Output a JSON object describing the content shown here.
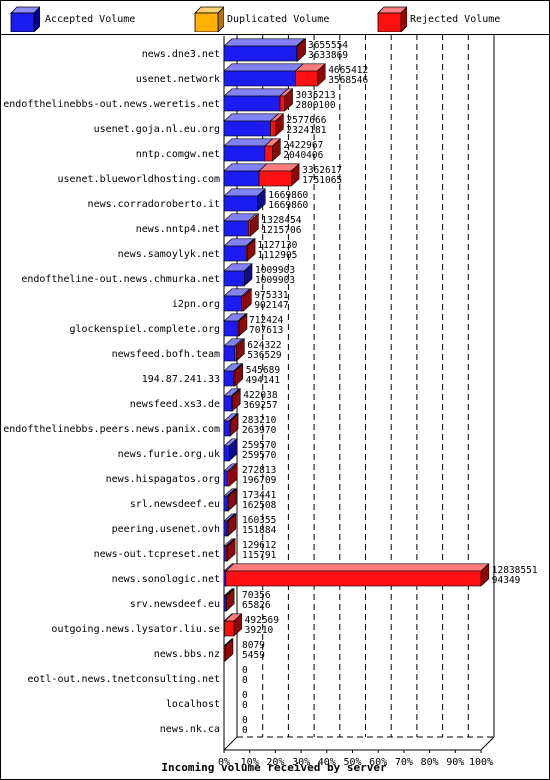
{
  "legend": [
    {
      "label": "Accepted Volume",
      "color": "#1c1cf0",
      "icon": "blue-cube-icon"
    },
    {
      "label": "Duplicated Volume",
      "color": "#ffb000",
      "icon": "orange-cube-icon"
    },
    {
      "label": "Rejected Volume",
      "color": "#ff1010",
      "icon": "red-cube-icon"
    }
  ],
  "chart_data": {
    "type": "bar",
    "orientation": "horizontal",
    "xlabel": "Incoming volume received by server",
    "xticks": [
      "0%",
      "10%",
      "20%",
      "30%",
      "40%",
      "50%",
      "60%",
      "70%",
      "80%",
      "90%",
      "100%"
    ],
    "xlim": [
      0,
      12838551
    ],
    "categories": [
      {
        "name": "news.dne3.net",
        "total": "3655554",
        "accepted": "3633869",
        "t": 3655554,
        "a": 3633869,
        "kind": "accepted"
      },
      {
        "name": "usenet.network",
        "total": "4665412",
        "accepted": "3568546",
        "t": 4665412,
        "a": 3568546,
        "kind": "accepted"
      },
      {
        "name": "endofthelinebbs-out.news.weretis.net",
        "total": "3035213",
        "accepted": "2800100",
        "t": 3035213,
        "a": 2800100,
        "kind": "accepted"
      },
      {
        "name": "usenet.goja.nl.eu.org",
        "total": "2577666",
        "accepted": "2324181",
        "t": 2577666,
        "a": 2324181,
        "kind": "accepted"
      },
      {
        "name": "nntp.comgw.net",
        "total": "2422967",
        "accepted": "2040406",
        "t": 2422967,
        "a": 2040406,
        "kind": "accepted"
      },
      {
        "name": "usenet.blueworldhosting.com",
        "total": "3362617",
        "accepted": "1751065",
        "t": 3362617,
        "a": 1751065,
        "kind": "accepted"
      },
      {
        "name": "news.corradoroberto.it",
        "total": "1669860",
        "accepted": "1669860",
        "t": 1669860,
        "a": 1669860,
        "kind": "accepted"
      },
      {
        "name": "news.nntp4.net",
        "total": "1328454",
        "accepted": "1215706",
        "t": 1328454,
        "a": 1215706,
        "kind": "accepted"
      },
      {
        "name": "news.samoylyk.net",
        "total": "1127130",
        "accepted": "1112905",
        "t": 1127130,
        "a": 1112905,
        "kind": "accepted"
      },
      {
        "name": "endoftheline-out.news.chmurka.net",
        "total": "1009903",
        "accepted": "1009903",
        "t": 1009903,
        "a": 1009903,
        "kind": "accepted"
      },
      {
        "name": "i2pn.org",
        "total": "975331",
        "accepted": "902147",
        "t": 975331,
        "a": 902147,
        "kind": "accepted"
      },
      {
        "name": "glockenspiel.complete.org",
        "total": "712424",
        "accepted": "707613",
        "t": 712424,
        "a": 707613,
        "kind": "accepted"
      },
      {
        "name": "newsfeed.bofh.team",
        "total": "624322",
        "accepted": "536529",
        "t": 624322,
        "a": 536529,
        "kind": "accepted"
      },
      {
        "name": "194.87.241.33",
        "total": "545689",
        "accepted": "494141",
        "t": 545689,
        "a": 494141,
        "kind": "accepted"
      },
      {
        "name": "newsfeed.xs3.de",
        "total": "422038",
        "accepted": "369257",
        "t": 422038,
        "a": 369257,
        "kind": "accepted"
      },
      {
        "name": "endofthelinebbs.peers.news.panix.com",
        "total": "283210",
        "accepted": "263970",
        "t": 283210,
        "a": 263970,
        "kind": "accepted"
      },
      {
        "name": "news.furie.org.uk",
        "total": "259570",
        "accepted": "259570",
        "t": 259570,
        "a": 259570,
        "kind": "accepted"
      },
      {
        "name": "news.hispagatos.org",
        "total": "272813",
        "accepted": "196709",
        "t": 272813,
        "a": 196709,
        "kind": "accepted"
      },
      {
        "name": "srl.newsdeef.eu",
        "total": "173441",
        "accepted": "162508",
        "t": 173441,
        "a": 162508,
        "kind": "accepted"
      },
      {
        "name": "peering.usenet.ovh",
        "total": "160355",
        "accepted": "151884",
        "t": 160355,
        "a": 151884,
        "kind": "accepted"
      },
      {
        "name": "news-out.tcpreset.net",
        "total": "129612",
        "accepted": "115791",
        "t": 129612,
        "a": 115791,
        "kind": "accepted"
      },
      {
        "name": "news.sonologic.net",
        "total": "12838551",
        "accepted": "94349",
        "t": 12838551,
        "a": 94349,
        "kind": "accepted"
      },
      {
        "name": "srv.newsdeef.eu",
        "total": "70356",
        "accepted": "65826",
        "t": 70356,
        "a": 65826,
        "kind": "accepted"
      },
      {
        "name": "outgoing.news.lysator.liu.se",
        "total": "492569",
        "accepted": "39210",
        "t": 492569,
        "a": 39210,
        "kind": "duplicated"
      },
      {
        "name": "news.bbs.nz",
        "total": "8079",
        "accepted": "5459",
        "t": 8079,
        "a": 5459,
        "kind": "duplicated"
      },
      {
        "name": "eotl-out.news.tnetconsulting.net",
        "total": "0",
        "accepted": "0",
        "t": 0,
        "a": 0,
        "kind": "accepted"
      },
      {
        "name": "localhost",
        "total": "0",
        "accepted": "0",
        "t": 0,
        "a": 0,
        "kind": "accepted"
      },
      {
        "name": "news.nk.ca",
        "total": "0",
        "accepted": "0",
        "t": 0,
        "a": 0,
        "kind": "accepted"
      }
    ],
    "grid": "dashed-vertical",
    "legend_position": "top"
  }
}
